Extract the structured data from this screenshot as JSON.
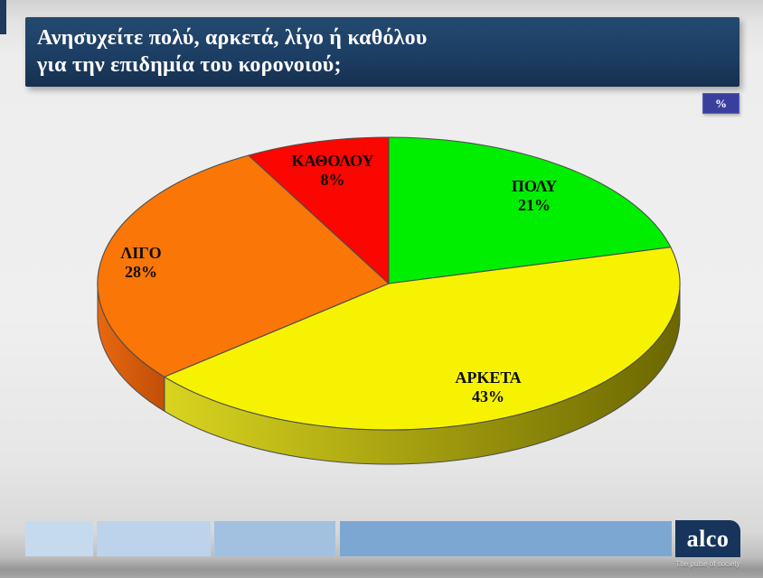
{
  "header": {
    "title_lines": [
      "Ανησυχείτε πολύ, αρκετά, λίγο ή καθόλου",
      "για την επιδημία του κορονοιού;"
    ],
    "unit_badge": "%",
    "bar_color": "#1d3e64",
    "badge_color": "#3a3f9d"
  },
  "chart_data": {
    "type": "pie",
    "style": "3d",
    "title": "Ανησυχείτε πολύ, αρκετά, λίγο ή καθόλου για την επιδημία του κορονοιού;",
    "unit": "%",
    "start_angle": "top",
    "direction": "clockwise",
    "series": [
      {
        "name": "ΠΟΛΥ",
        "value": 21,
        "pct_label": "21%",
        "color": "#00ef00"
      },
      {
        "name": "ΑΡΚΕΤΑ",
        "value": 43,
        "pct_label": "43%",
        "color": "#f7f300",
        "side_color": "#d9d41f",
        "side_color2": "#6b6700"
      },
      {
        "name": "ΛΙΓΟ",
        "value": 28,
        "pct_label": "28%",
        "color": "#f97607",
        "side_color": "#e8680f",
        "side_color2": "#c14e08"
      },
      {
        "name": "ΚΑΘΟΛΟΥ",
        "value": 8,
        "pct_label": "8%",
        "color": "#fb0600"
      }
    ]
  },
  "footer": {
    "logo_text": "alco",
    "tagline": "The pulse of society"
  }
}
